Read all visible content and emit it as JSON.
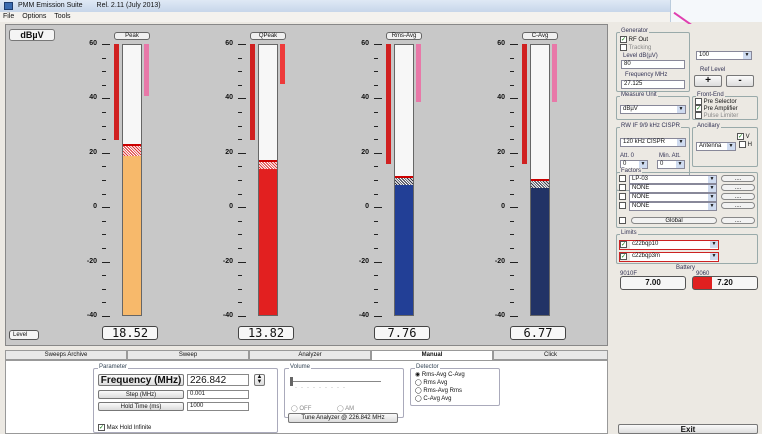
{
  "window": {
    "title": "PMM Emission Suite",
    "release": "Rel. 2.11 (July 2013)"
  },
  "menu": [
    "File",
    "Options",
    "Tools"
  ],
  "meter": {
    "unit": "dBµV",
    "scale": [
      "60",
      "40",
      "20",
      "0",
      "-20",
      "-40"
    ],
    "level_button": "Level",
    "colors": {
      "peak": "#f7b96b",
      "qpeak": "#e22020",
      "rmsavg": "#223f96",
      "cavg": "#223366"
    },
    "channels": [
      {
        "label": "Peak",
        "value": "18.52"
      },
      {
        "label": "QPeak",
        "value": "13.82"
      },
      {
        "label": "Rms-Avg",
        "value": "7.76"
      },
      {
        "label": "C-Avg",
        "value": "6.77"
      }
    ]
  },
  "tabs": [
    "Sweeps Archive",
    "Sweep",
    "Analyzer",
    "Manual",
    "Click"
  ],
  "active_tab": "Manual",
  "parameter": {
    "title": "Parameter",
    "freq_label": "Frequency (MHz)",
    "freq_value": "226.842",
    "step_label": "Step (MHz)",
    "step_value": "0.001",
    "hold_label": "Hold Time (ms)",
    "hold_value": "1000",
    "max_hold": "Max Hold Infinite"
  },
  "volume": {
    "title": "Volume",
    "off": "OFF",
    "am": "AM",
    "tune": "Tune Analyzer @ 226.842 MHz"
  },
  "detector": {
    "title": "Detector",
    "options": [
      "Rms-Avg  C-Avg",
      "Rms  Avg",
      "Rms-Avg  Rms",
      "C-Avg  Avg"
    ]
  },
  "generator": {
    "title": "Generator",
    "rf_out": "RF Out",
    "tracking": "Tracking",
    "level_label": "Level dB(µV)",
    "level_value": "80",
    "freq_label": "Frequency MHz",
    "freq_value": "27.125",
    "step_value": "100",
    "ref_level": "Ref Level",
    "plus": "+",
    "minus": "-"
  },
  "measure_unit": {
    "title": "Measure Unit",
    "value": "dBµV"
  },
  "front_end": {
    "title": "Front-End",
    "items": [
      "Pre Selector",
      "Pre Amplifier",
      "Pulse Limiter"
    ]
  },
  "rbw": {
    "title": "RW IF 9/9 kHz CISPR",
    "value": "120 kHz CISPR"
  },
  "ancillary": {
    "title": "Ancillary",
    "value": "Antenna",
    "v": "V",
    "h": "H"
  },
  "atten": {
    "att_label": "Att. 0",
    "min_label": "Min. Att.",
    "att_value": "0",
    "min_value": "0"
  },
  "factors": {
    "title": "Factors",
    "items": [
      "LP-03",
      "NONE",
      "NONE",
      "NONE"
    ],
    "global": "Global",
    "more": "...."
  },
  "limits": {
    "title": "Limits",
    "items": [
      "c22bqp10",
      "c22bqp3m"
    ]
  },
  "battery": {
    "title": "Battery",
    "left_label": "9010F",
    "left_value": "7.00",
    "right_label": "9060",
    "right_value": "7.20"
  },
  "exit": "Exit"
}
